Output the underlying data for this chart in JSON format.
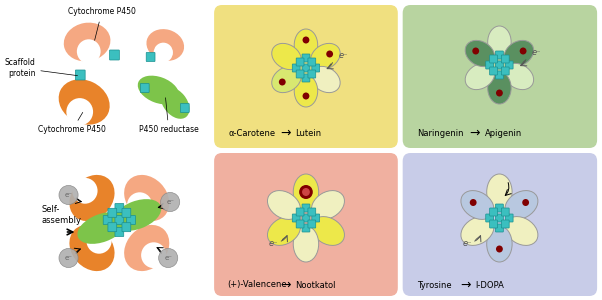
{
  "bg_color": "#ffffff",
  "panel_colors": {
    "top_mid": "#f0e080",
    "top_right": "#b8d4a0",
    "bot_mid": "#f0b0a0",
    "bot_right": "#c8cce8"
  },
  "labels": {
    "cyto_top": "Cytochrome P450",
    "scaffold": "Scaffold\nprotein",
    "cyto_bot": "Cytochrome P450",
    "reductase": "P450 reductase",
    "self_assembly": "Self-\nassembly",
    "alpha_carotene": "α-Carotene",
    "lutein": "Lutein",
    "naringenin": "Naringenin",
    "apigenin": "Apigenin",
    "valencene": "(+)-Valencene",
    "nootkatol": "Nootkatol",
    "tyrosine": "Tyrosine",
    "l_dopa": "l-DOPA"
  },
  "colors": {
    "salmon": "#f5a882",
    "orange": "#e8832a",
    "green": "#7dc44a",
    "teal": "#3bbfbf",
    "teal_dark": "#1a9090",
    "yellow": "#ede84a",
    "yellow2": "#d8e870",
    "pale_yellow": "#f0f0c0",
    "green_dark": "#5a9060",
    "blue_pale": "#b8c8e0",
    "red_dark": "#800000",
    "gray_e": "#b0b0b0",
    "gray_e_text": "#666666"
  }
}
